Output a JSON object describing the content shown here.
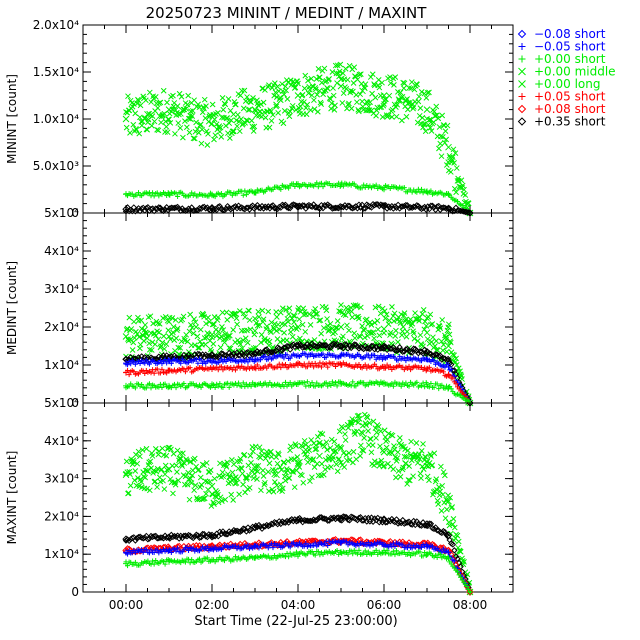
{
  "title": "20250723 MININT / MEDINT / MAXINT",
  "xlabel": "Start Time (22-Jul-25 23:00:00)",
  "x_ticks": [
    "00:00",
    "02:00",
    "04:00",
    "06:00",
    "08:00"
  ],
  "legend": [
    {
      "sym": "diamond",
      "label": "−0.08 short",
      "color": "#0000ff"
    },
    {
      "sym": "plus",
      "label": "−0.05 short",
      "color": "#0000ff"
    },
    {
      "sym": "plus",
      "label": "+0.00 short",
      "color": "#00ee00"
    },
    {
      "sym": "cross",
      "label": "+0.00 middle",
      "color": "#00ee00"
    },
    {
      "sym": "cross",
      "label": "+0.00 long",
      "color": "#00ee00"
    },
    {
      "sym": "plus",
      "label": "+0.05 short",
      "color": "#ff0000"
    },
    {
      "sym": "diamond",
      "label": "+0.08 short",
      "color": "#ff0000"
    },
    {
      "sym": "diamond",
      "label": "+0.35 short",
      "color": "#000000"
    }
  ],
  "chart_data": [
    {
      "type": "scatter",
      "ylabel": "MININT [count]",
      "xlim": [
        -1,
        9
      ],
      "ylim": [
        0,
        20000
      ],
      "y_ticks": [
        "0",
        "5.0x10³",
        "1.0x10⁴",
        "1.5x10⁴",
        "2.0x10⁴"
      ],
      "series": [
        {
          "label": "+0.00 middle",
          "color": "#00ee00",
          "x": [
            0.0,
            0.5,
            1.0,
            1.5,
            2.0,
            2.5,
            3.0,
            3.5,
            4.0,
            4.5,
            5.0,
            5.5,
            6.0,
            6.5,
            7.0,
            7.5,
            8.0
          ],
          "y": [
            10000,
            10500,
            11000,
            10000,
            9500,
            10500,
            11000,
            11500,
            12500,
            13000,
            13500,
            13000,
            12500,
            12000,
            11000,
            7000,
            0
          ]
        },
        {
          "label": "+0.00 short",
          "color": "#00ee00",
          "x": [
            0.0,
            1.0,
            2.0,
            3.0,
            4.0,
            5.0,
            6.0,
            7.0,
            7.5,
            8.0
          ],
          "y": [
            2000,
            2000,
            1900,
            2200,
            3000,
            3000,
            2700,
            2300,
            2000,
            0
          ]
        },
        {
          "label": "+0.35 short",
          "color": "#000000",
          "x": [
            0.0,
            2.0,
            4.0,
            6.0,
            7.5,
            8.0
          ],
          "y": [
            400,
            500,
            700,
            700,
            500,
            0
          ]
        }
      ]
    },
    {
      "type": "scatter",
      "ylabel": "MEDINT [count]",
      "xlim": [
        -1,
        9
      ],
      "ylim": [
        0,
        50000
      ],
      "y_ticks": [
        "0",
        "1x10⁴",
        "2x10⁴",
        "3x10⁴",
        "4x10⁴",
        "5x10⁴"
      ],
      "series": [
        {
          "label": "+0.00 long",
          "color": "#00ee00",
          "x": [
            0.0,
            1.0,
            2.0,
            3.0,
            3.5,
            4.0,
            5.0,
            6.0,
            7.0,
            7.5,
            8.0
          ],
          "y": [
            17500,
            17500,
            18000,
            19000,
            19000,
            20000,
            20000,
            19500,
            18500,
            15000,
            0
          ]
        },
        {
          "label": "+0.35 short",
          "color": "#000000",
          "x": [
            0.0,
            1.0,
            2.0,
            3.0,
            4.0,
            5.0,
            6.0,
            7.0,
            7.5,
            8.0
          ],
          "y": [
            11500,
            12000,
            12500,
            13000,
            15000,
            15000,
            14500,
            13500,
            11000,
            0
          ]
        },
        {
          "label": "−0.05 short",
          "color": "#0000ff",
          "x": [
            0.0,
            1.0,
            2.0,
            3.0,
            4.0,
            5.0,
            6.0,
            7.0,
            7.5,
            8.0
          ],
          "y": [
            10500,
            11000,
            11000,
            11500,
            12500,
            12500,
            12000,
            11500,
            9500,
            0
          ]
        },
        {
          "label": "+0.05 short",
          "color": "#ff0000",
          "x": [
            0.0,
            1.0,
            2.0,
            3.0,
            4.0,
            5.0,
            6.0,
            7.0,
            7.5,
            8.0
          ],
          "y": [
            8000,
            8500,
            9000,
            9500,
            10000,
            10000,
            9500,
            9000,
            7500,
            0
          ]
        },
        {
          "label": "+0.00 short",
          "color": "#00ee00",
          "x": [
            0.0,
            1.0,
            2.0,
            3.0,
            4.0,
            5.0,
            6.0,
            7.0,
            7.5,
            8.0
          ],
          "y": [
            4500,
            4500,
            4600,
            4800,
            5000,
            5000,
            5000,
            4800,
            4000,
            0
          ]
        }
      ]
    },
    {
      "type": "scatter",
      "ylabel": "MAXINT [count]",
      "xlim": [
        -1,
        9
      ],
      "ylim": [
        0,
        50000
      ],
      "y_ticks": [
        "0",
        "1x10⁴",
        "2x10⁴",
        "3x10⁴",
        "4x10⁴",
        "5x10⁴"
      ],
      "series": [
        {
          "label": "+0.00 middle",
          "color": "#00ee00",
          "x": [
            0.0,
            0.5,
            1.0,
            1.5,
            2.0,
            2.5,
            3.0,
            3.5,
            4.0,
            4.5,
            5.0,
            5.5,
            6.0,
            6.5,
            7.0,
            7.5,
            8.0
          ],
          "y": [
            31000,
            32000,
            32500,
            30000,
            28000,
            30000,
            33000,
            31000,
            34000,
            36000,
            38000,
            42000,
            37000,
            34000,
            34500,
            24000,
            0
          ]
        },
        {
          "label": "+0.35 short",
          "color": "#000000",
          "x": [
            0.0,
            1.0,
            2.0,
            3.0,
            4.0,
            5.0,
            6.0,
            7.0,
            7.5,
            8.0
          ],
          "y": [
            14000,
            14500,
            15000,
            17000,
            19000,
            19500,
            19000,
            18000,
            15000,
            0
          ]
        },
        {
          "label": "+0.08 short",
          "color": "#ff0000",
          "x": [
            0.0,
            1.0,
            2.0,
            3.0,
            4.0,
            5.0,
            6.0,
            7.0,
            7.5,
            8.0
          ],
          "y": [
            11000,
            11500,
            12000,
            12500,
            13000,
            13500,
            13000,
            12500,
            11000,
            0
          ]
        },
        {
          "label": "−0.05 short",
          "color": "#0000ff",
          "x": [
            0.0,
            1.0,
            2.0,
            3.0,
            4.0,
            5.0,
            6.0,
            7.0,
            7.5,
            8.0
          ],
          "y": [
            10500,
            11000,
            11500,
            12000,
            12500,
            13000,
            12500,
            12000,
            10500,
            0
          ]
        },
        {
          "label": "+0.00 short",
          "color": "#00ee00",
          "x": [
            0.0,
            1.0,
            2.0,
            3.0,
            4.0,
            5.0,
            6.0,
            7.0,
            7.5,
            8.0
          ],
          "y": [
            7500,
            8000,
            8500,
            9000,
            10000,
            10500,
            10500,
            10000,
            9000,
            0
          ]
        }
      ]
    }
  ]
}
